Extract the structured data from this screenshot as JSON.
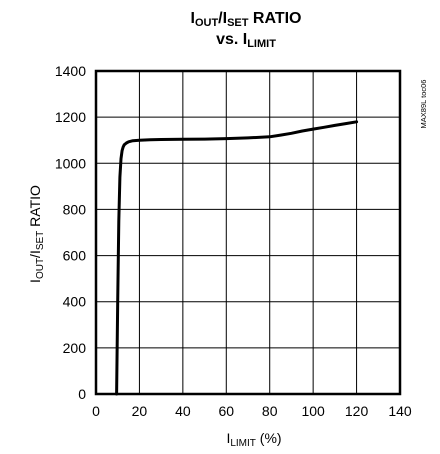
{
  "chart_data": {
    "type": "line",
    "title": {
      "line1": {
        "main": "I",
        "sub": "OUT",
        "mid": "/I",
        "sub2": "SET",
        "tail": " RATIO"
      },
      "line2": {
        "main": "vs. I",
        "sub": "LIMIT"
      }
    },
    "xlabel": {
      "main": "I",
      "sub": "LIMIT",
      "tail": " (%)"
    },
    "ylabel": {
      "main": "I",
      "sub": "OUT",
      "mid": "/I",
      "sub2": "SET",
      "tail": " RATIO"
    },
    "code": "MAX89L toc06",
    "xlim": [
      0,
      140
    ],
    "ylim": [
      0,
      1400
    ],
    "xticks": [
      0,
      20,
      40,
      60,
      80,
      100,
      120,
      140
    ],
    "yticks": [
      0,
      200,
      400,
      600,
      800,
      1000,
      1200,
      1400
    ],
    "grid": true,
    "series": [
      {
        "x": [
          9.5,
          10,
          10.5,
          11,
          11.5,
          12,
          12.5,
          13,
          14,
          15,
          17,
          20,
          25,
          30,
          40,
          50,
          60,
          70,
          80,
          85,
          90,
          95,
          100,
          105,
          110,
          115,
          120
        ],
        "y": [
          0,
          400,
          750,
          940,
          1020,
          1055,
          1070,
          1080,
          1088,
          1093,
          1098,
          1100,
          1102,
          1103,
          1104,
          1105,
          1107,
          1110,
          1115,
          1122,
          1130,
          1140,
          1148,
          1156,
          1164,
          1172,
          1180
        ]
      }
    ]
  }
}
